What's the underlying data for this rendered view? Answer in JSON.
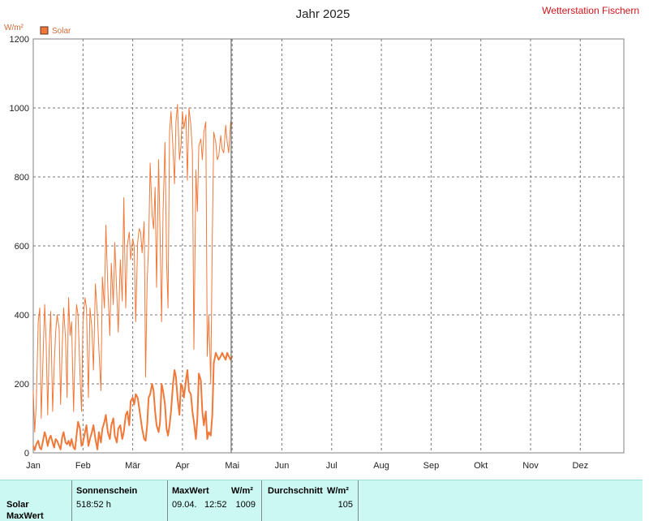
{
  "header": {
    "title": "Jahr 2025",
    "station": "Wetterstation Fischern"
  },
  "colors": {
    "solar": "#f0793a",
    "station": "#d0141b",
    "axis_unit": "#d06a36",
    "grid": "#777777",
    "frame": "#808080",
    "infobar": "#ccf8f4"
  },
  "chart_data": {
    "type": "line",
    "title": "Jahr 2025",
    "ylabel": "W/m²",
    "ylim": [
      0,
      1200
    ],
    "yticks": [
      0,
      200,
      400,
      600,
      800,
      1000,
      1200
    ],
    "xlim": [
      0,
      12
    ],
    "xticks": [
      "Jan",
      "Feb",
      "Mär",
      "Apr",
      "Mai",
      "Jun",
      "Jul",
      "Aug",
      "Sep",
      "Okt",
      "Nov",
      "Dez"
    ],
    "grid": true,
    "legend": {
      "position": "top-left",
      "entries": [
        "Solar"
      ]
    },
    "current_marker_month": 3.98,
    "series": [
      {
        "name": "Solar",
        "role": "daily maximum",
        "x": [
          0.0,
          0.03,
          0.06,
          0.1,
          0.13,
          0.16,
          0.19,
          0.23,
          0.26,
          0.29,
          0.32,
          0.35,
          0.39,
          0.42,
          0.45,
          0.48,
          0.52,
          0.55,
          0.58,
          0.61,
          0.65,
          0.68,
          0.71,
          0.74,
          0.77,
          0.81,
          0.84,
          0.87,
          0.9,
          0.94,
          0.97,
          1.0,
          1.04,
          1.07,
          1.11,
          1.14,
          1.18,
          1.21,
          1.25,
          1.29,
          1.32,
          1.36,
          1.39,
          1.43,
          1.46,
          1.5,
          1.54,
          1.57,
          1.61,
          1.64,
          1.68,
          1.71,
          1.75,
          1.79,
          1.82,
          1.86,
          1.89,
          1.93,
          1.96,
          2.0,
          2.03,
          2.06,
          2.1,
          2.13,
          2.16,
          2.19,
          2.23,
          2.26,
          2.29,
          2.32,
          2.35,
          2.39,
          2.42,
          2.45,
          2.48,
          2.52,
          2.55,
          2.58,
          2.61,
          2.65,
          2.68,
          2.71,
          2.74,
          2.77,
          2.81,
          2.84,
          2.87,
          2.9,
          2.94,
          2.97,
          3.0,
          3.03,
          3.07,
          3.1,
          3.13,
          3.17,
          3.2,
          3.23,
          3.27,
          3.3,
          3.33,
          3.37,
          3.4,
          3.43,
          3.47,
          3.5,
          3.53,
          3.57,
          3.6,
          3.63,
          3.67,
          3.7,
          3.73,
          3.77,
          3.8,
          3.83,
          3.87,
          3.9,
          3.93,
          3.97,
          4.0
        ],
        "y": [
          180,
          60,
          140,
          380,
          420,
          100,
          240,
          430,
          320,
          110,
          300,
          410,
          120,
          250,
          350,
          400,
          360,
          140,
          300,
          420,
          330,
          160,
          450,
          340,
          380,
          120,
          290,
          430,
          400,
          230,
          120,
          380,
          450,
          420,
          160,
          420,
          360,
          240,
          490,
          400,
          300,
          180,
          510,
          420,
          660,
          480,
          340,
          550,
          430,
          610,
          460,
          350,
          560,
          440,
          740,
          420,
          600,
          640,
          560,
          620,
          600,
          380,
          610,
          650,
          640,
          580,
          670,
          220,
          500,
          600,
          840,
          690,
          650,
          770,
          480,
          850,
          640,
          380,
          700,
          900,
          560,
          420,
          930,
          990,
          880,
          780,
          960,
          1010,
          850,
          890,
          990,
          940,
          980,
          790,
          1000,
          950,
          870,
          300,
          820,
          700,
          890,
          910,
          850,
          930,
          960,
          280,
          400,
          200,
          620,
          930,
          900,
          850,
          860,
          920,
          880,
          870,
          950,
          900,
          870,
          960,
          950
        ]
      },
      {
        "name": "",
        "role": "daily average",
        "x": [
          0.0,
          0.03,
          0.06,
          0.1,
          0.13,
          0.16,
          0.19,
          0.23,
          0.26,
          0.29,
          0.32,
          0.35,
          0.39,
          0.42,
          0.45,
          0.48,
          0.52,
          0.55,
          0.58,
          0.61,
          0.65,
          0.68,
          0.71,
          0.74,
          0.77,
          0.81,
          0.84,
          0.87,
          0.9,
          0.94,
          0.97,
          1.0,
          1.04,
          1.07,
          1.11,
          1.14,
          1.18,
          1.21,
          1.25,
          1.29,
          1.32,
          1.36,
          1.39,
          1.43,
          1.46,
          1.5,
          1.54,
          1.57,
          1.61,
          1.64,
          1.68,
          1.71,
          1.75,
          1.79,
          1.82,
          1.86,
          1.89,
          1.93,
          1.96,
          2.0,
          2.03,
          2.06,
          2.1,
          2.13,
          2.16,
          2.19,
          2.23,
          2.26,
          2.29,
          2.32,
          2.35,
          2.39,
          2.42,
          2.45,
          2.48,
          2.52,
          2.55,
          2.58,
          2.61,
          2.65,
          2.68,
          2.71,
          2.74,
          2.77,
          2.81,
          2.84,
          2.87,
          2.9,
          2.94,
          2.97,
          3.0,
          3.03,
          3.07,
          3.1,
          3.13,
          3.17,
          3.2,
          3.23,
          3.27,
          3.3,
          3.33,
          3.37,
          3.4,
          3.43,
          3.47,
          3.5,
          3.53,
          3.57,
          3.6,
          3.63,
          3.67,
          3.7,
          3.73,
          3.77,
          3.8,
          3.83,
          3.87,
          3.9,
          3.93,
          3.97,
          4.0
        ],
        "y": [
          20,
          8,
          25,
          35,
          15,
          10,
          30,
          60,
          45,
          20,
          40,
          50,
          30,
          15,
          40,
          35,
          20,
          10,
          45,
          60,
          30,
          25,
          35,
          20,
          40,
          15,
          10,
          50,
          90,
          70,
          20,
          30,
          60,
          80,
          20,
          40,
          60,
          80,
          40,
          10,
          60,
          30,
          70,
          90,
          110,
          60,
          40,
          80,
          100,
          50,
          30,
          70,
          80,
          40,
          60,
          110,
          120,
          80,
          150,
          160,
          140,
          170,
          160,
          130,
          100,
          70,
          40,
          35,
          80,
          160,
          170,
          200,
          180,
          120,
          80,
          60,
          90,
          200,
          180,
          140,
          70,
          50,
          80,
          120,
          200,
          240,
          220,
          160,
          110,
          200,
          190,
          160,
          210,
          240,
          180,
          170,
          120,
          90,
          40,
          100,
          230,
          210,
          120,
          80,
          120,
          40,
          60,
          50,
          110,
          260,
          290,
          280,
          270,
          280,
          290,
          280,
          270,
          290,
          280,
          270,
          280
        ]
      }
    ]
  },
  "infobar": {
    "row_label_1": "Solar",
    "row_label_2": "MaxWert",
    "col1_header": "Sonnenschein",
    "col1_value": "518:52 h",
    "col2_header": "MaxWert",
    "col2_unit": "W/m²",
    "col2_date": "09.04.",
    "col2_time": "12:52",
    "col2_value": "1009",
    "col3_header": "Durchschnitt",
    "col3_unit": "W/m²",
    "col3_value": "105"
  }
}
